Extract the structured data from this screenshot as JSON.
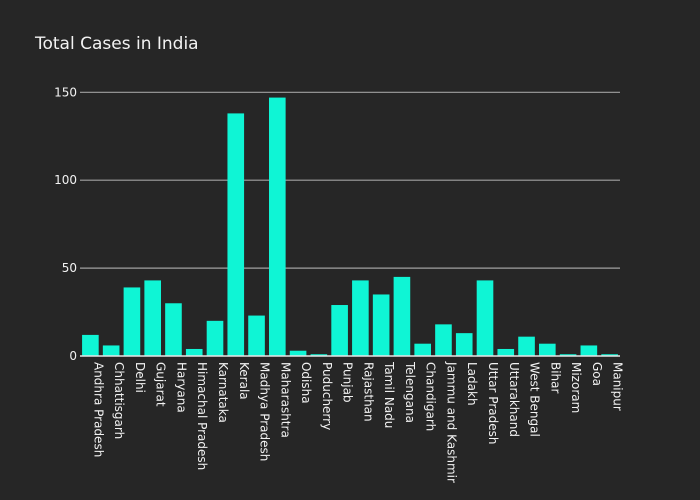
{
  "chart_data": {
    "type": "bar",
    "title": "Total Cases in India",
    "xlabel": "",
    "ylabel": "",
    "ylim": [
      0,
      157
    ],
    "yticks": [
      0,
      50,
      100,
      150
    ],
    "grid": true,
    "legend": "none",
    "bar_color": "#0ff5d5",
    "background": "#262626",
    "categories": [
      "Andhra Pradesh",
      "Chhattisgarh",
      "Delhi",
      "Gujarat",
      "Haryana",
      "Himachal Pradesh",
      "Karnataka",
      "Kerala",
      "Madhya Pradesh",
      "Maharashtra",
      "Odisha",
      "Puducherry",
      "Punjab",
      "Rajasthan",
      "Tamil Nadu",
      "Telengana",
      "Chandigarh",
      "Jammu and Kashmir",
      "Ladakh",
      "Uttar Pradesh",
      "Uttarakhand",
      "West Bengal",
      "Bihar",
      "Mizoram",
      "Goa",
      "Manipur"
    ],
    "values": [
      12,
      6,
      39,
      43,
      30,
      4,
      20,
      138,
      23,
      147,
      3,
      1,
      29,
      43,
      35,
      45,
      7,
      18,
      13,
      43,
      4,
      11,
      7,
      1,
      6,
      1
    ]
  }
}
